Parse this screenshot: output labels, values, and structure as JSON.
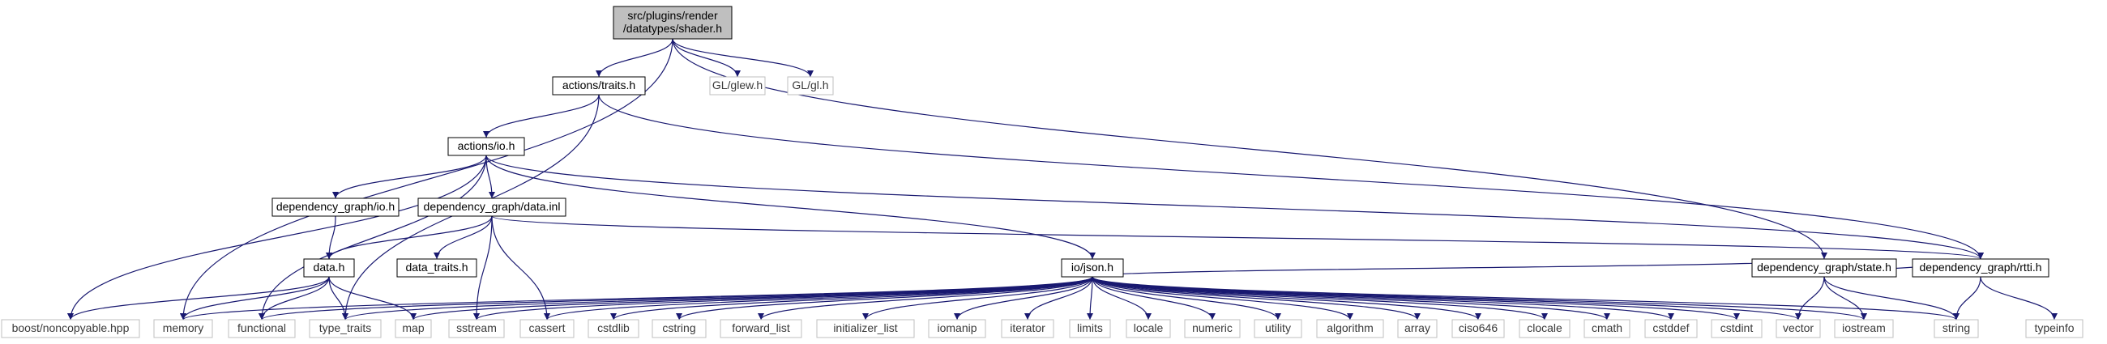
{
  "diagram": {
    "colors": {
      "edge": "#191970",
      "node_border": "#000000",
      "ext_border": "#bfbfbf",
      "root_fill": "#bfbfbf",
      "node_fill": "#ffffff"
    },
    "nodes": [
      {
        "id": "shader_h",
        "lines": [
          "src/plugins/render",
          "/datatypes/shader.h"
        ],
        "kind": "root"
      },
      {
        "id": "memory",
        "lines": [
          "memory"
        ],
        "kind": "ext"
      },
      {
        "id": "actions_traits_h",
        "lines": [
          "actions/traits.h"
        ],
        "kind": "node"
      },
      {
        "id": "gl_glew_h",
        "lines": [
          "GL/glew.h"
        ],
        "kind": "ext"
      },
      {
        "id": "gl_gl_h",
        "lines": [
          "GL/gl.h"
        ],
        "kind": "ext"
      },
      {
        "id": "dg_rtti_h",
        "lines": [
          "dependency_graph/rtti.h"
        ],
        "kind": "node"
      },
      {
        "id": "dg_state_h",
        "lines": [
          "dependency_graph/state.h"
        ],
        "kind": "node"
      },
      {
        "id": "actions_io_h",
        "lines": [
          "actions/io.h"
        ],
        "kind": "node"
      },
      {
        "id": "type_traits",
        "lines": [
          "type_traits"
        ],
        "kind": "ext"
      },
      {
        "id": "boost_noncopyable",
        "lines": [
          "boost/noncopyable.hpp"
        ],
        "kind": "ext"
      },
      {
        "id": "functional",
        "lines": [
          "functional"
        ],
        "kind": "ext"
      },
      {
        "id": "dg_io_h",
        "lines": [
          "dependency_graph/io.h"
        ],
        "kind": "node"
      },
      {
        "id": "dg_data_inl",
        "lines": [
          "dependency_graph/data.inl"
        ],
        "kind": "node"
      },
      {
        "id": "io_json_h",
        "lines": [
          "io/json.h"
        ],
        "kind": "node"
      },
      {
        "id": "data_h",
        "lines": [
          "data.h"
        ],
        "kind": "node"
      },
      {
        "id": "map",
        "lines": [
          "map"
        ],
        "kind": "ext"
      },
      {
        "id": "data_traits_h",
        "lines": [
          "data_traits.h"
        ],
        "kind": "node"
      },
      {
        "id": "sstream",
        "lines": [
          "sstream"
        ],
        "kind": "ext"
      },
      {
        "id": "cassert",
        "lines": [
          "cassert"
        ],
        "kind": "ext"
      },
      {
        "id": "cstdlib",
        "lines": [
          "cstdlib"
        ],
        "kind": "ext"
      },
      {
        "id": "cstring",
        "lines": [
          "cstring"
        ],
        "kind": "ext"
      },
      {
        "id": "forward_list",
        "lines": [
          "forward_list"
        ],
        "kind": "ext"
      },
      {
        "id": "initializer_list",
        "lines": [
          "initializer_list"
        ],
        "kind": "ext"
      },
      {
        "id": "iomanip",
        "lines": [
          "iomanip"
        ],
        "kind": "ext"
      },
      {
        "id": "iterator",
        "lines": [
          "iterator"
        ],
        "kind": "ext"
      },
      {
        "id": "limits",
        "lines": [
          "limits"
        ],
        "kind": "ext"
      },
      {
        "id": "locale",
        "lines": [
          "locale"
        ],
        "kind": "ext"
      },
      {
        "id": "numeric",
        "lines": [
          "numeric"
        ],
        "kind": "ext"
      },
      {
        "id": "utility",
        "lines": [
          "utility"
        ],
        "kind": "ext"
      },
      {
        "id": "algorithm",
        "lines": [
          "algorithm"
        ],
        "kind": "ext"
      },
      {
        "id": "array",
        "lines": [
          "array"
        ],
        "kind": "ext"
      },
      {
        "id": "ciso646",
        "lines": [
          "ciso646"
        ],
        "kind": "ext"
      },
      {
        "id": "clocale",
        "lines": [
          "clocale"
        ],
        "kind": "ext"
      },
      {
        "id": "cmath",
        "lines": [
          "cmath"
        ],
        "kind": "ext"
      },
      {
        "id": "cstddef",
        "lines": [
          "cstddef"
        ],
        "kind": "ext"
      },
      {
        "id": "cstdint",
        "lines": [
          "cstdint"
        ],
        "kind": "ext"
      },
      {
        "id": "vector",
        "lines": [
          "vector"
        ],
        "kind": "ext"
      },
      {
        "id": "iostream",
        "lines": [
          "iostream"
        ],
        "kind": "ext"
      },
      {
        "id": "string",
        "lines": [
          "string"
        ],
        "kind": "ext"
      },
      {
        "id": "typeinfo",
        "lines": [
          "typeinfo"
        ],
        "kind": "ext"
      }
    ],
    "edges": [
      [
        "shader_h",
        "memory"
      ],
      [
        "shader_h",
        "actions_traits_h"
      ],
      [
        "shader_h",
        "gl_glew_h"
      ],
      [
        "shader_h",
        "gl_gl_h"
      ],
      [
        "shader_h",
        "dg_state_h"
      ],
      [
        "actions_traits_h",
        "actions_io_h"
      ],
      [
        "actions_traits_h",
        "dg_rtti_h"
      ],
      [
        "actions_traits_h",
        "type_traits"
      ],
      [
        "actions_io_h",
        "boost_noncopyable"
      ],
      [
        "actions_io_h",
        "functional"
      ],
      [
        "actions_io_h",
        "dg_io_h"
      ],
      [
        "actions_io_h",
        "dg_data_inl"
      ],
      [
        "actions_io_h",
        "io_json_h"
      ],
      [
        "actions_io_h",
        "dg_rtti_h"
      ],
      [
        "dg_io_h",
        "data_h"
      ],
      [
        "dg_data_inl",
        "data_h"
      ],
      [
        "dg_data_inl",
        "data_traits_h"
      ],
      [
        "dg_data_inl",
        "sstream"
      ],
      [
        "dg_data_inl",
        "cassert"
      ],
      [
        "dg_data_inl",
        "dg_rtti_h"
      ],
      [
        "data_h",
        "boost_noncopyable"
      ],
      [
        "data_h",
        "memory"
      ],
      [
        "data_h",
        "functional"
      ],
      [
        "data_h",
        "type_traits"
      ],
      [
        "data_h",
        "map"
      ],
      [
        "io_json_h",
        "memory"
      ],
      [
        "io_json_h",
        "functional"
      ],
      [
        "io_json_h",
        "type_traits"
      ],
      [
        "io_json_h",
        "map"
      ],
      [
        "io_json_h",
        "sstream"
      ],
      [
        "io_json_h",
        "cassert"
      ],
      [
        "io_json_h",
        "cstdlib"
      ],
      [
        "io_json_h",
        "cstring"
      ],
      [
        "io_json_h",
        "forward_list"
      ],
      [
        "io_json_h",
        "initializer_list"
      ],
      [
        "io_json_h",
        "iomanip"
      ],
      [
        "io_json_h",
        "iterator"
      ],
      [
        "io_json_h",
        "limits"
      ],
      [
        "io_json_h",
        "locale"
      ],
      [
        "io_json_h",
        "numeric"
      ],
      [
        "io_json_h",
        "utility"
      ],
      [
        "io_json_h",
        "algorithm"
      ],
      [
        "io_json_h",
        "array"
      ],
      [
        "io_json_h",
        "ciso646"
      ],
      [
        "io_json_h",
        "clocale"
      ],
      [
        "io_json_h",
        "cmath"
      ],
      [
        "io_json_h",
        "cstddef"
      ],
      [
        "io_json_h",
        "cstdint"
      ],
      [
        "io_json_h",
        "vector"
      ],
      [
        "io_json_h",
        "iostream"
      ],
      [
        "io_json_h",
        "string"
      ],
      [
        "io_json_h",
        "dg_state_h"
      ],
      [
        "dg_state_h",
        "vector"
      ],
      [
        "dg_state_h",
        "iostream"
      ],
      [
        "dg_state_h",
        "string"
      ],
      [
        "dg_state_h",
        "dg_rtti_h"
      ],
      [
        "dg_rtti_h",
        "string"
      ],
      [
        "dg_rtti_h",
        "typeinfo"
      ]
    ]
  }
}
